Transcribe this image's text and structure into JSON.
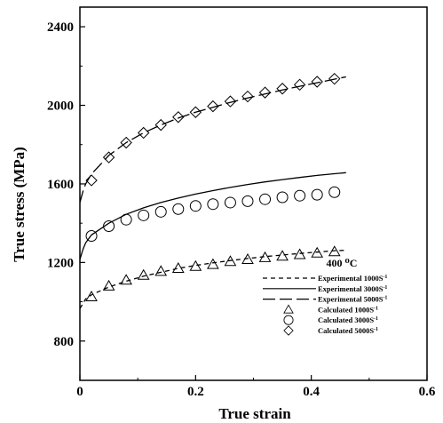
{
  "chart_data": {
    "type": "line",
    "xlabel": "True strain",
    "ylabel": "True stress (MPa)",
    "xlim": [
      0,
      0.6
    ],
    "ylim": [
      600,
      2500
    ],
    "xticks": [
      0,
      0.2,
      0.4,
      0.6
    ],
    "xtick_labels": [
      "0",
      "0.2",
      "0.4",
      "0.6"
    ],
    "yticks": [
      800,
      1200,
      1600,
      2000,
      2400
    ],
    "ytick_labels": [
      "800",
      "1200",
      "1600",
      "2000",
      "2400"
    ],
    "grid": false,
    "legend": {
      "title": "400 ⁰C",
      "placement": "lower-right",
      "entries": [
        {
          "label": "Experimental 1000S",
          "superscript": "-1",
          "marker": "short-dash"
        },
        {
          "label": "Experimental 3000S",
          "superscript": "-1",
          "marker": "solid"
        },
        {
          "label": "Experimental 5000S",
          "superscript": "-1",
          "marker": "long-dash"
        },
        {
          "label": "Calculated 1000S",
          "superscript": "-1",
          "marker": "triangle"
        },
        {
          "label": "Calculated 3000S",
          "superscript": "-1",
          "marker": "circle"
        },
        {
          "label": "Calculated 5000S",
          "superscript": "-1",
          "marker": "diamond"
        }
      ]
    },
    "series": [
      {
        "name": "Experimental 1000S-1",
        "style": "short-dash",
        "x": [
          0.0,
          0.005,
          0.01,
          0.02,
          0.05,
          0.08,
          0.11,
          0.14,
          0.17,
          0.2,
          0.23,
          0.26,
          0.29,
          0.32,
          0.35,
          0.38,
          0.41,
          0.44,
          0.46
        ],
        "y": [
          965,
          990,
          1015,
          1035,
          1075,
          1105,
          1130,
          1150,
          1170,
          1185,
          1198,
          1210,
          1220,
          1230,
          1238,
          1246,
          1253,
          1260,
          1262
        ]
      },
      {
        "name": "Experimental 3000S-1",
        "style": "solid",
        "x": [
          0.0,
          0.005,
          0.01,
          0.02,
          0.05,
          0.08,
          0.11,
          0.14,
          0.17,
          0.2,
          0.23,
          0.26,
          0.29,
          0.32,
          0.35,
          0.38,
          0.41,
          0.44,
          0.46
        ],
        "y": [
          1215,
          1265,
          1300,
          1340,
          1400,
          1445,
          1478,
          1505,
          1528,
          1548,
          1566,
          1582,
          1597,
          1610,
          1622,
          1633,
          1643,
          1652,
          1657
        ]
      },
      {
        "name": "Experimental 5000S-1",
        "style": "long-dash",
        "x": [
          0.0,
          0.005,
          0.01,
          0.02,
          0.05,
          0.08,
          0.11,
          0.14,
          0.17,
          0.2,
          0.23,
          0.26,
          0.29,
          0.32,
          0.35,
          0.38,
          0.41,
          0.44,
          0.46
        ],
        "y": [
          1505,
          1560,
          1600,
          1650,
          1745,
          1810,
          1860,
          1900,
          1935,
          1965,
          1990,
          2015,
          2037,
          2058,
          2078,
          2097,
          2115,
          2133,
          2145
        ]
      },
      {
        "name": "Calculated 1000S-1",
        "style": "triangle",
        "x": [
          0.02,
          0.05,
          0.08,
          0.11,
          0.14,
          0.17,
          0.2,
          0.23,
          0.26,
          0.29,
          0.32,
          0.35,
          0.38,
          0.41,
          0.44
        ],
        "y": [
          1025,
          1080,
          1110,
          1135,
          1155,
          1170,
          1180,
          1190,
          1205,
          1215,
          1225,
          1232,
          1240,
          1248,
          1255
        ]
      },
      {
        "name": "Calculated 3000S-1",
        "style": "circle",
        "x": [
          0.02,
          0.05,
          0.08,
          0.11,
          0.14,
          0.17,
          0.2,
          0.23,
          0.26,
          0.29,
          0.32,
          0.35,
          0.38,
          0.41,
          0.44
        ],
        "y": [
          1335,
          1385,
          1418,
          1440,
          1458,
          1472,
          1488,
          1497,
          1505,
          1512,
          1522,
          1532,
          1540,
          1545,
          1558
        ]
      },
      {
        "name": "Calculated 5000S-1",
        "style": "diamond",
        "x": [
          0.02,
          0.05,
          0.08,
          0.11,
          0.14,
          0.17,
          0.2,
          0.23,
          0.26,
          0.29,
          0.32,
          0.35,
          0.38,
          0.41,
          0.44
        ],
        "y": [
          1618,
          1735,
          1810,
          1860,
          1900,
          1940,
          1965,
          1995,
          2020,
          2045,
          2065,
          2085,
          2105,
          2120,
          2135
        ]
      }
    ]
  }
}
